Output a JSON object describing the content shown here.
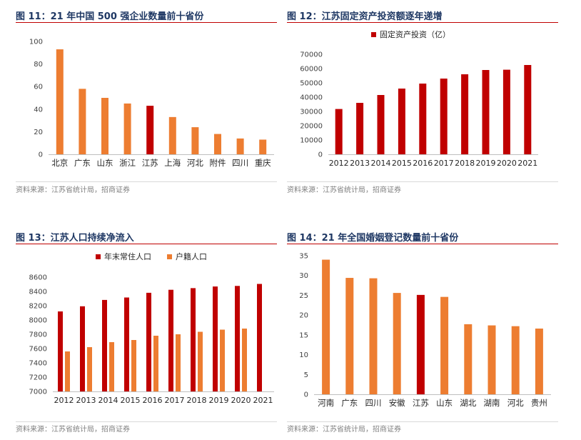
{
  "colors": {
    "highlight": "#c00000",
    "bar": "#ed7d31",
    "title": "#1f3864",
    "rule": "#c00000",
    "axis": "#bfbfbf",
    "source": "#7f7f7f"
  },
  "chart_data": [
    {
      "type": "bar",
      "title": "图 11：21 年中国 500 强企业数量前十省份",
      "source": "资料来源：江苏省统计局，招商证券",
      "categories": [
        "北京",
        "广东",
        "山东",
        "浙江",
        "江苏",
        "上海",
        "河北",
        "附件",
        "四川",
        "重庆"
      ],
      "values": [
        93,
        58,
        50,
        45,
        43,
        33,
        24,
        18,
        14,
        13
      ],
      "highlight_category": "江苏",
      "ylim": [
        0,
        100
      ],
      "yticks": [
        0,
        20,
        40,
        60,
        80,
        100
      ],
      "grid": false
    },
    {
      "type": "bar",
      "title": "图 12：江苏固定资产投资额逐年递增",
      "source": "资料来源：江苏省统计局，招商证券",
      "categories": [
        "2012",
        "2013",
        "2014",
        "2015",
        "2016",
        "2017",
        "2018",
        "2019",
        "2020",
        "2021"
      ],
      "series": [
        {
          "name": "固定资产投资（亿）",
          "values": [
            31700,
            36000,
            41500,
            46000,
            49500,
            53000,
            56000,
            59000,
            59200,
            62500
          ]
        }
      ],
      "ylim": [
        0,
        70000
      ],
      "yticks": [
        0,
        10000,
        20000,
        30000,
        40000,
        50000,
        60000,
        70000
      ],
      "legend": "top",
      "grid": false
    },
    {
      "type": "bar",
      "title": "图 13：江苏人口持续净流入",
      "source": "资料来源：江苏省统计局，招商证券",
      "categories": [
        "2012",
        "2013",
        "2014",
        "2015",
        "2016",
        "2017",
        "2018",
        "2019",
        "2020",
        "2021"
      ],
      "series": [
        {
          "name": "年末常住人口",
          "values": [
            8120,
            8192,
            8281,
            8315,
            8381,
            8423,
            8446,
            8469,
            8477,
            8505
          ]
        },
        {
          "name": "户籍人口",
          "values": [
            7560,
            7620,
            7690,
            7720,
            7780,
            7800,
            7835,
            7865,
            7880,
            null
          ]
        }
      ],
      "ylim": [
        7000,
        8600
      ],
      "yticks": [
        7000,
        7200,
        7400,
        7600,
        7800,
        8000,
        8200,
        8400,
        8600
      ],
      "legend": "top",
      "grid": false
    },
    {
      "type": "bar",
      "title": "图 14：21 年全国婚姻登记数量前十省份",
      "source": "资料来源：江苏省统计局，招商证券",
      "categories": [
        "河南",
        "广东",
        "四川",
        "安徽",
        "江苏",
        "山东",
        "湖北",
        "湖南",
        "河北",
        "贵州"
      ],
      "values": [
        34,
        29.4,
        29.3,
        25.6,
        25.1,
        24.6,
        17.7,
        17.4,
        17.2,
        16.6
      ],
      "highlight_category": "江苏",
      "ylim": [
        0,
        35
      ],
      "yticks": [
        0,
        5,
        10,
        15,
        20,
        25,
        30,
        35
      ],
      "grid": false
    }
  ]
}
